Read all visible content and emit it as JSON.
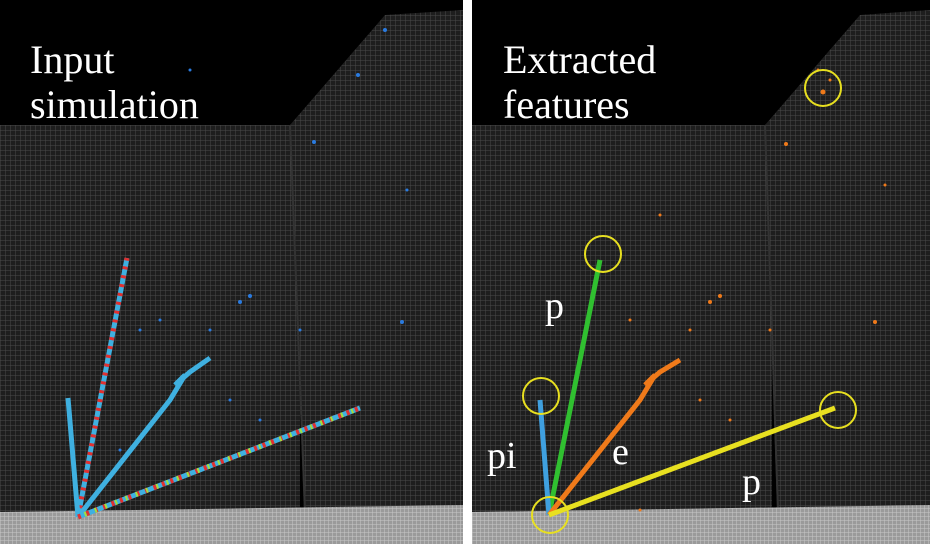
{
  "panels": [
    {
      "title_lines": [
        "Input",
        "simulation"
      ]
    },
    {
      "title_lines": [
        "Extracted",
        "features"
      ],
      "labels": [
        "p",
        "pi",
        "e",
        "p"
      ]
    }
  ]
}
